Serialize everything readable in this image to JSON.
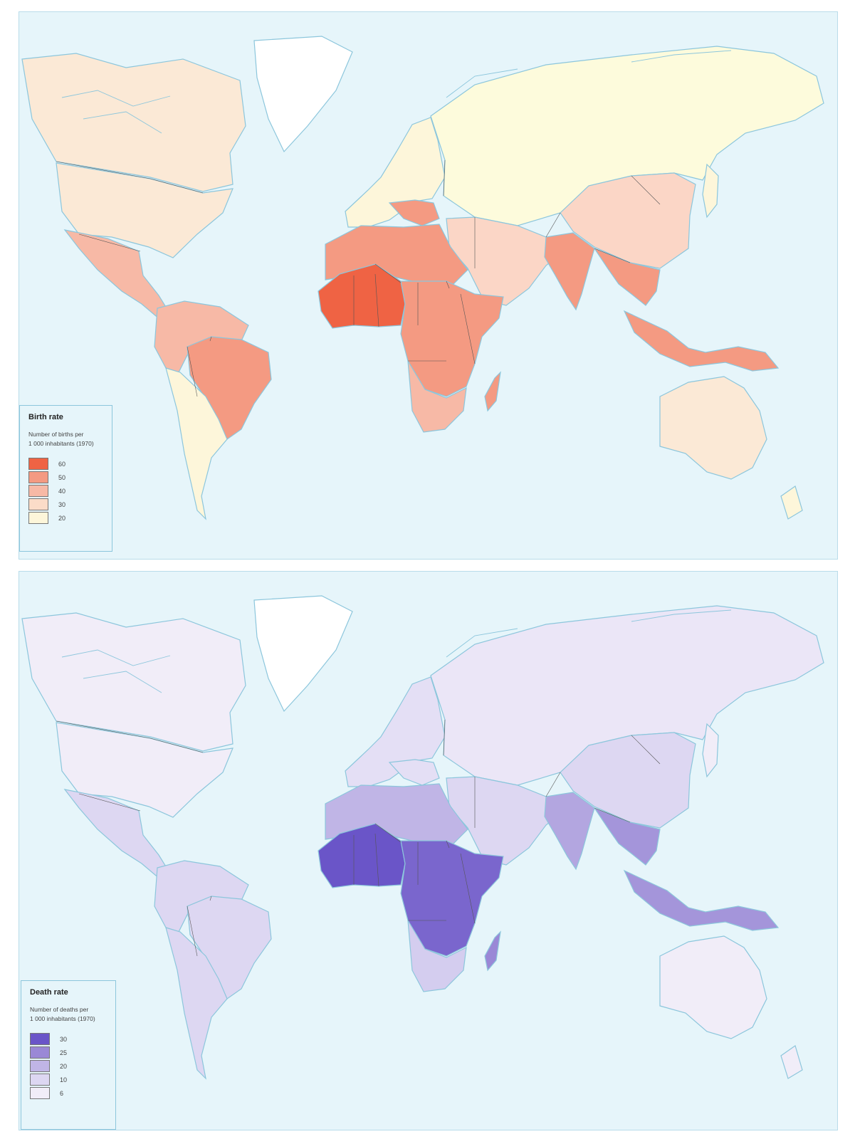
{
  "maps": [
    {
      "id": "birth",
      "legend": {
        "title": "Birth rate",
        "subtitle": "Number of births per\n1 000 inhabitants (1970)",
        "classes": [
          {
            "label": "60",
            "color": "#ef6344"
          },
          {
            "label": "50",
            "color": "#f49a82"
          },
          {
            "label": "40",
            "color": "#f7b9a6"
          },
          {
            "label": "30",
            "color": "#fbdcc8"
          },
          {
            "label": "20",
            "color": "#fdf6da"
          }
        ]
      },
      "region_colors": {
        "greenland": "#ffffff",
        "canada": "#fbe9d6",
        "usa": "#fbe9d6",
        "mexico_central": "#f7b9a6",
        "south_america_north": "#f7b9a6",
        "brazil": "#f49a82",
        "south_america_south": "#fdf6da",
        "europe": "#fdf6da",
        "balkans": "#f49a82",
        "ussr": "#fdfbdc",
        "china": "#fbd6c6",
        "middle_east": "#fbd6c6",
        "india": "#f49a82",
        "southeast_asia": "#f49a82",
        "indonesia": "#f49a82",
        "north_africa": "#f49a82",
        "west_africa": "#ef6344",
        "central_africa": "#f49a82",
        "southern_africa": "#f7b9a6",
        "madagascar": "#f49a82",
        "australia": "#fbe9d6",
        "japan": "#fdf6da",
        "new_zealand": "#fdf6da"
      }
    },
    {
      "id": "death",
      "legend": {
        "title": "Death rate",
        "subtitle": "Number of deaths per\n1 000 inhabitants (1970)",
        "classes": [
          {
            "label": "30",
            "color": "#6a55c8"
          },
          {
            "label": "25",
            "color": "#9a88d6"
          },
          {
            "label": "20",
            "color": "#c0b5e6"
          },
          {
            "label": "10",
            "color": "#ddd7f2"
          },
          {
            "label": "6",
            "color": "#f1edf8"
          }
        ]
      },
      "region_colors": {
        "greenland": "#ffffff",
        "canada": "#f1edf8",
        "usa": "#f1edf8",
        "mexico_central": "#ddd7f2",
        "south_america_north": "#ddd7f2",
        "brazil": "#ddd7f2",
        "south_america_south": "#ddd7f2",
        "europe": "#e4dff5",
        "balkans": "#e4dff5",
        "ussr": "#ebe6f7",
        "china": "#ddd7f2",
        "middle_east": "#ddd7f2",
        "india": "#b3a6e0",
        "southeast_asia": "#a495da",
        "indonesia": "#a495da",
        "north_africa": "#c0b5e6",
        "west_africa": "#6a55c8",
        "central_africa": "#7a66cd",
        "southern_africa": "#d4cdef",
        "madagascar": "#9a88d6",
        "australia": "#f1edf8",
        "japan": "#f1edf8",
        "new_zealand": "#f1edf8"
      }
    }
  ],
  "colors": {
    "ocean": "#e6f5fa",
    "coastline": "#8cc6dc",
    "border": "#555555"
  }
}
